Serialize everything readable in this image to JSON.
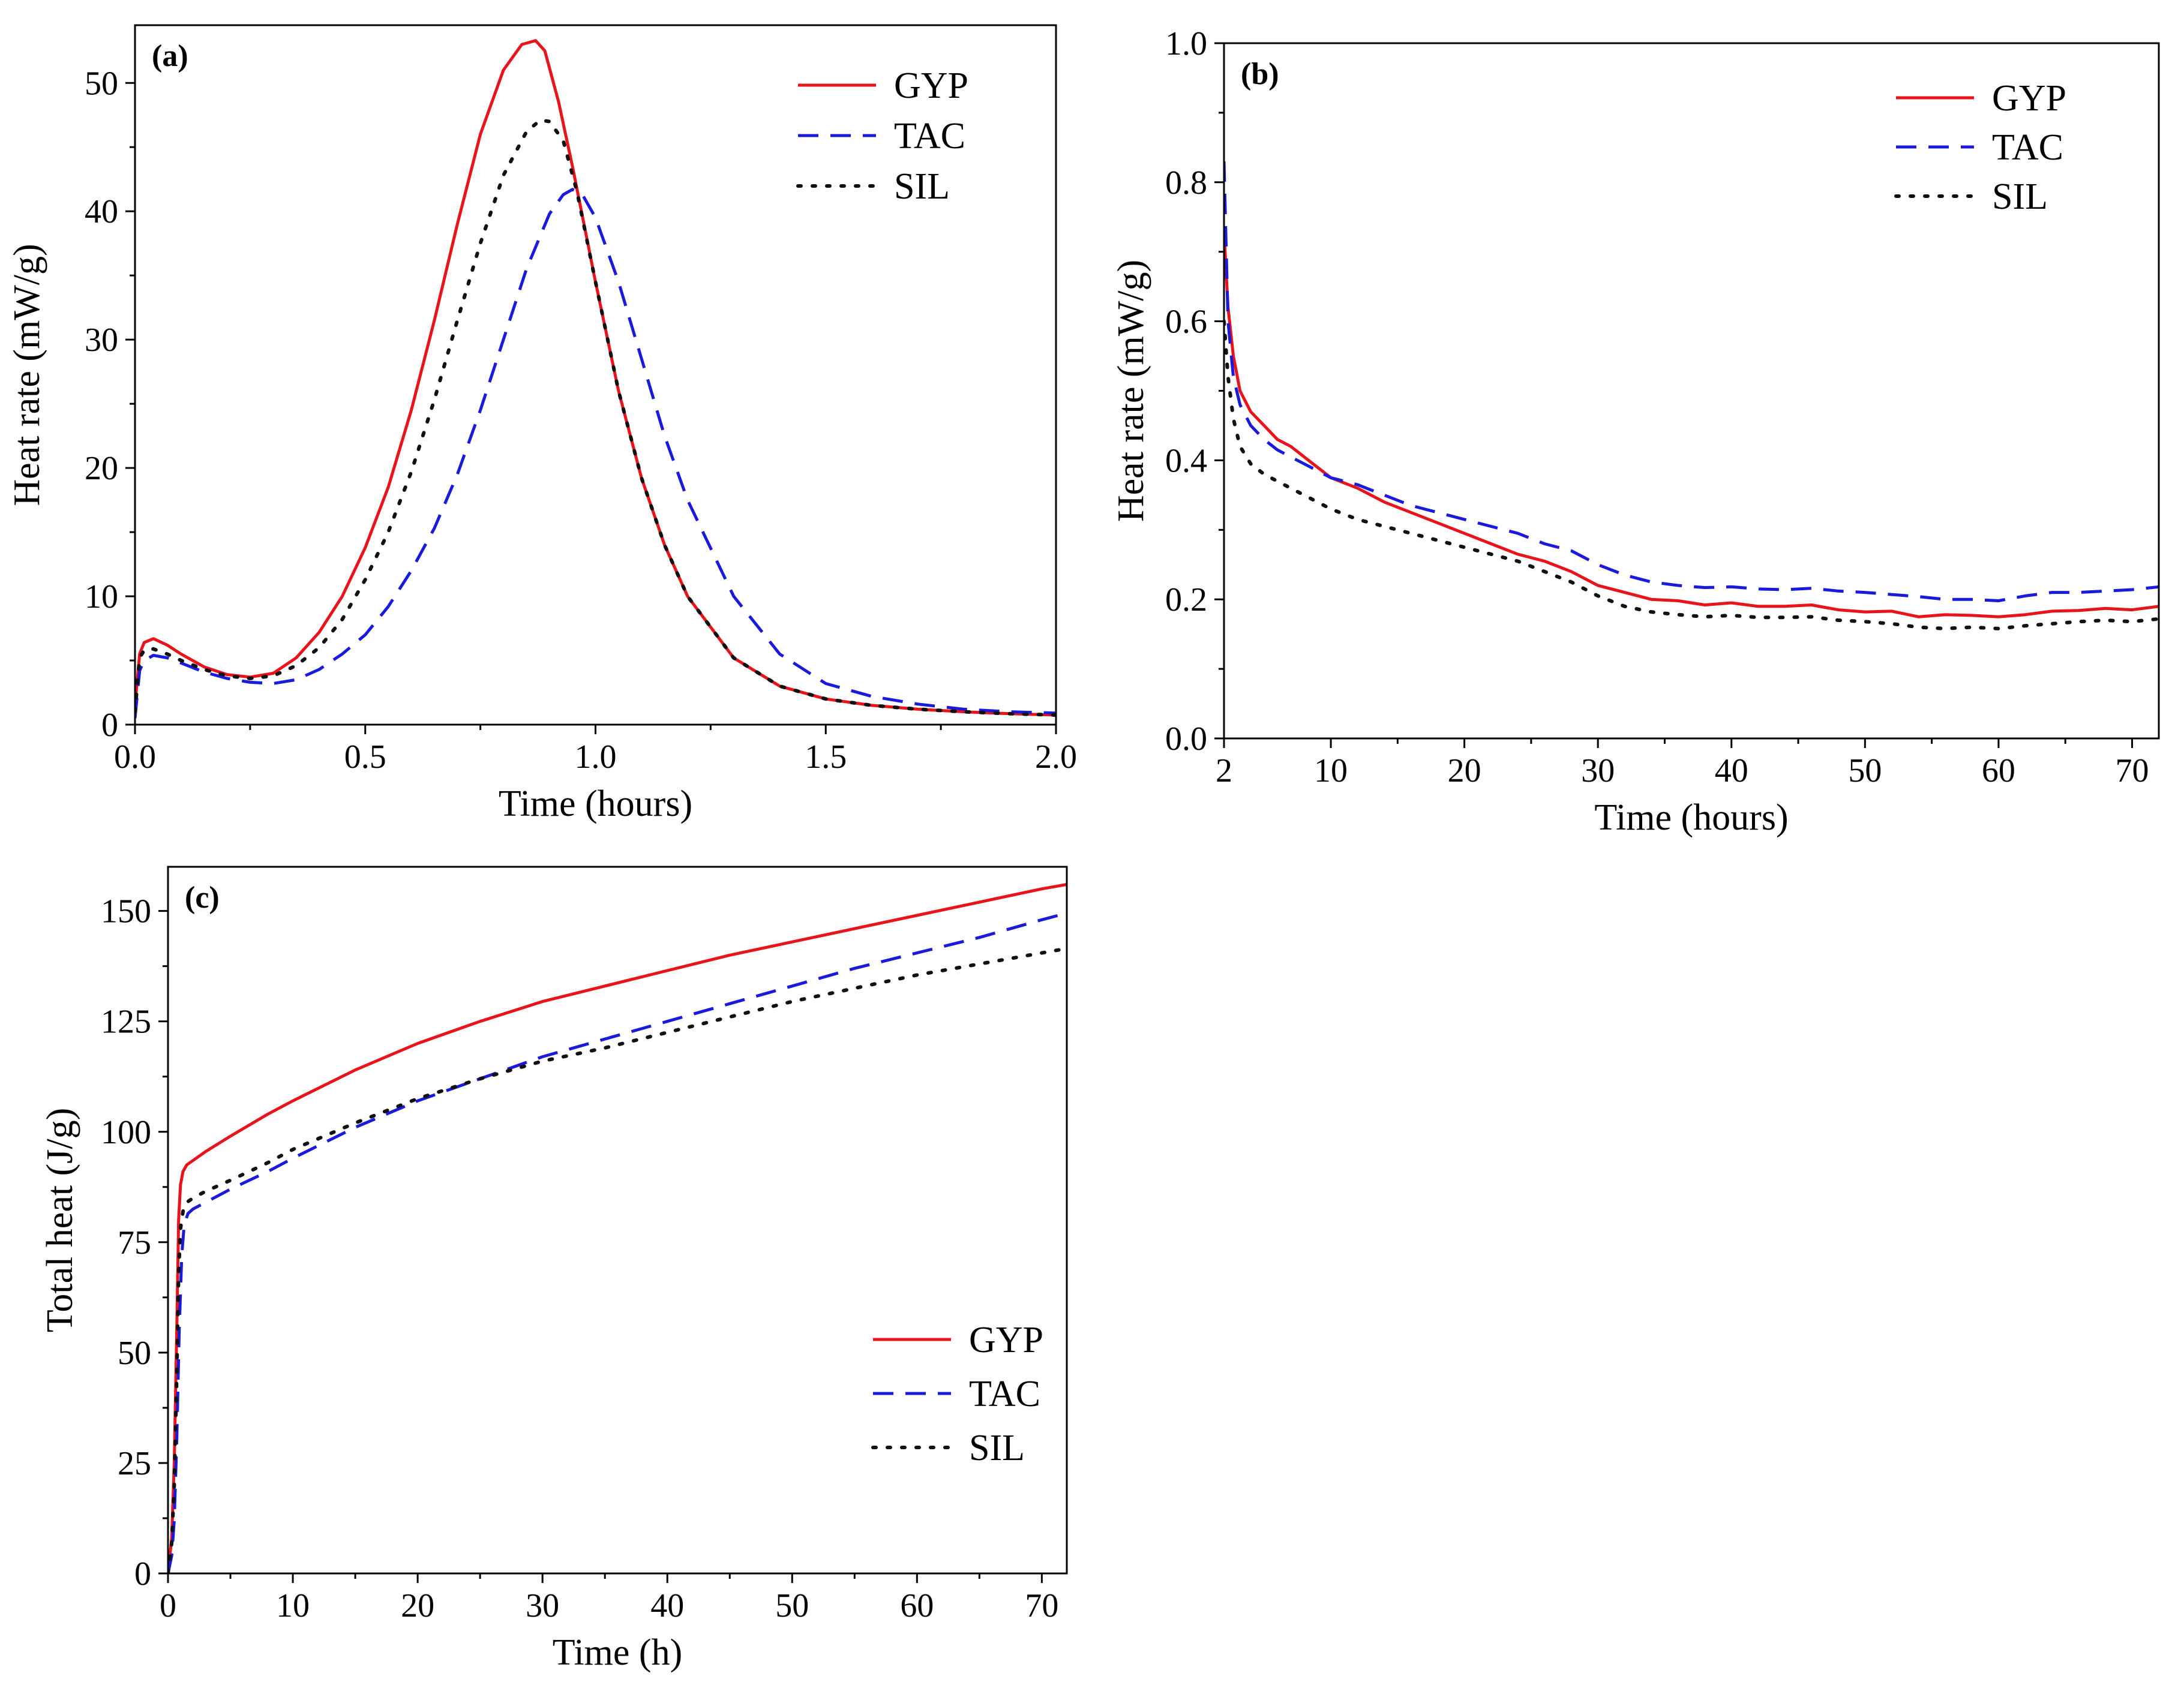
{
  "colors": {
    "GYP": "#e8141b",
    "TAC": "#1a1adb",
    "SIL": "#111111"
  },
  "chart_data": [
    {
      "id": "a",
      "panel_label": "(a)",
      "type": "line",
      "xlabel": "Time (hours)",
      "ylabel": "Heat rate (mW/g)",
      "xlim": [
        0,
        2.0
      ],
      "ylim": [
        0,
        54.5
      ],
      "xticks": [
        0.0,
        0.5,
        1.0,
        1.5,
        2.0
      ],
      "xtick_labels": [
        "0.0",
        "0.5",
        "1.0",
        "1.5",
        "2.0"
      ],
      "yticks": [
        0,
        10,
        20,
        30,
        40,
        50
      ],
      "ytick_labels": [
        "0",
        "10",
        "20",
        "30",
        "40",
        "50"
      ],
      "legend_position": "top-right",
      "series": [
        {
          "name": "GYP",
          "style": "solid",
          "x": [
            0,
            0.01,
            0.02,
            0.04,
            0.07,
            0.1,
            0.15,
            0.2,
            0.25,
            0.3,
            0.35,
            0.4,
            0.45,
            0.5,
            0.55,
            0.6,
            0.65,
            0.7,
            0.75,
            0.8,
            0.84,
            0.87,
            0.89,
            0.92,
            0.95,
            1.0,
            1.05,
            1.1,
            1.15,
            1.2,
            1.3,
            1.4,
            1.5,
            1.6,
            1.7,
            1.8,
            1.9,
            2.0
          ],
          "y": [
            1.5,
            5.5,
            6.4,
            6.7,
            6.2,
            5.5,
            4.5,
            3.9,
            3.7,
            4.0,
            5.2,
            7.2,
            10.0,
            13.8,
            18.5,
            24.5,
            31.5,
            39.0,
            46.0,
            51.0,
            53.0,
            53.3,
            52.5,
            48.5,
            43.5,
            34.5,
            26.0,
            19.2,
            14.0,
            10.0,
            5.2,
            3.0,
            2.0,
            1.5,
            1.2,
            1.0,
            0.85,
            0.75
          ]
        },
        {
          "name": "TAC",
          "style": "dashed",
          "x": [
            0,
            0.01,
            0.02,
            0.04,
            0.07,
            0.1,
            0.15,
            0.2,
            0.25,
            0.3,
            0.35,
            0.4,
            0.45,
            0.5,
            0.55,
            0.6,
            0.65,
            0.7,
            0.75,
            0.8,
            0.85,
            0.9,
            0.93,
            0.95,
            0.97,
            1.0,
            1.05,
            1.1,
            1.15,
            1.2,
            1.3,
            1.4,
            1.5,
            1.6,
            1.7,
            1.8,
            1.9,
            2.0
          ],
          "y": [
            0.5,
            4.2,
            5.0,
            5.4,
            5.2,
            4.8,
            4.1,
            3.6,
            3.3,
            3.2,
            3.5,
            4.3,
            5.5,
            7.0,
            9.2,
            12.0,
            15.3,
            19.5,
            24.5,
            30.0,
            35.5,
            39.8,
            41.3,
            41.7,
            41.4,
            39.5,
            34.5,
            28.5,
            22.5,
            17.5,
            10.0,
            5.5,
            3.2,
            2.2,
            1.6,
            1.2,
            1.0,
            0.9
          ]
        },
        {
          "name": "SIL",
          "style": "dotted",
          "x": [
            0,
            0.01,
            0.02,
            0.04,
            0.07,
            0.1,
            0.15,
            0.2,
            0.25,
            0.3,
            0.35,
            0.4,
            0.45,
            0.5,
            0.55,
            0.6,
            0.65,
            0.7,
            0.75,
            0.8,
            0.85,
            0.88,
            0.9,
            0.93,
            0.96,
            1.0,
            1.05,
            1.1,
            1.15,
            1.2,
            1.3,
            1.4,
            1.5,
            1.6,
            1.7,
            1.8,
            1.9,
            2.0
          ],
          "y": [
            1.0,
            5.2,
            5.8,
            5.9,
            5.5,
            5.0,
            4.3,
            3.8,
            3.6,
            3.8,
            4.6,
            6.0,
            8.2,
            11.3,
            15.0,
            19.7,
            25.3,
            31.5,
            37.5,
            42.8,
            46.2,
            47.1,
            47.0,
            45.5,
            41.5,
            34.5,
            26.0,
            19.2,
            14.0,
            10.0,
            5.2,
            3.0,
            2.0,
            1.5,
            1.2,
            1.0,
            0.85,
            0.75
          ]
        }
      ]
    },
    {
      "id": "b",
      "panel_label": "(b)",
      "type": "line",
      "xlabel": "Time (hours)",
      "ylabel": "Heat rate (mW/g)",
      "xlim": [
        2,
        72
      ],
      "ylim": [
        0,
        1.0
      ],
      "xticks": [
        2,
        10,
        20,
        30,
        40,
        50,
        60,
        70
      ],
      "xtick_labels": [
        "2",
        "10",
        "20",
        "30",
        "40",
        "50",
        "60",
        "70"
      ],
      "yticks": [
        0.0,
        0.2,
        0.4,
        0.6,
        0.8,
        1.0
      ],
      "ytick_labels": [
        "0.0",
        "0.2",
        "0.4",
        "0.6",
        "0.8",
        "1.0"
      ],
      "legend_position": "top-right",
      "series": [
        {
          "name": "GYP",
          "style": "solid",
          "x": [
            2,
            2.3,
            2.7,
            3.2,
            4,
            5,
            6,
            7,
            8,
            9,
            10,
            12,
            14,
            16,
            18,
            20,
            22,
            24,
            26,
            28,
            30,
            32,
            34,
            36,
            38,
            40,
            42,
            44,
            46,
            48,
            50,
            52,
            54,
            56,
            58,
            60,
            62,
            64,
            66,
            68,
            70,
            72
          ],
          "y": [
            0.73,
            0.62,
            0.55,
            0.5,
            0.47,
            0.45,
            0.43,
            0.42,
            0.405,
            0.39,
            0.375,
            0.36,
            0.34,
            0.325,
            0.31,
            0.295,
            0.28,
            0.265,
            0.255,
            0.24,
            0.22,
            0.21,
            0.2,
            0.198,
            0.192,
            0.195,
            0.19,
            0.19,
            0.192,
            0.185,
            0.182,
            0.183,
            0.175,
            0.178,
            0.177,
            0.175,
            0.178,
            0.183,
            0.184,
            0.187,
            0.185,
            0.19
          ]
        },
        {
          "name": "TAC",
          "style": "dashed",
          "x": [
            2,
            2.3,
            2.7,
            3.2,
            4,
            5,
            6,
            7,
            8,
            9,
            10,
            12,
            14,
            16,
            18,
            20,
            22,
            24,
            26,
            28,
            30,
            32,
            34,
            36,
            38,
            40,
            42,
            44,
            46,
            48,
            50,
            52,
            54,
            56,
            58,
            60,
            62,
            64,
            66,
            68,
            70,
            72
          ],
          "y": [
            0.83,
            0.6,
            0.52,
            0.48,
            0.45,
            0.43,
            0.415,
            0.405,
            0.395,
            0.385,
            0.375,
            0.365,
            0.35,
            0.335,
            0.325,
            0.315,
            0.305,
            0.295,
            0.28,
            0.27,
            0.25,
            0.235,
            0.225,
            0.22,
            0.217,
            0.218,
            0.215,
            0.214,
            0.216,
            0.212,
            0.21,
            0.207,
            0.204,
            0.2,
            0.2,
            0.198,
            0.205,
            0.21,
            0.21,
            0.212,
            0.214,
            0.218
          ]
        },
        {
          "name": "SIL",
          "style": "dotted",
          "x": [
            2,
            2.3,
            2.7,
            3.2,
            4,
            5,
            6,
            7,
            8,
            9,
            10,
            12,
            14,
            16,
            18,
            20,
            22,
            24,
            26,
            28,
            30,
            32,
            34,
            36,
            38,
            40,
            42,
            44,
            46,
            48,
            50,
            52,
            54,
            56,
            58,
            60,
            62,
            64,
            66,
            68,
            70,
            72
          ],
          "y": [
            0.6,
            0.52,
            0.46,
            0.42,
            0.395,
            0.38,
            0.37,
            0.36,
            0.35,
            0.34,
            0.33,
            0.315,
            0.305,
            0.295,
            0.285,
            0.275,
            0.265,
            0.255,
            0.24,
            0.225,
            0.205,
            0.19,
            0.182,
            0.178,
            0.175,
            0.177,
            0.174,
            0.174,
            0.175,
            0.17,
            0.168,
            0.165,
            0.16,
            0.158,
            0.16,
            0.158,
            0.162,
            0.165,
            0.168,
            0.17,
            0.168,
            0.172
          ]
        }
      ]
    },
    {
      "id": "c",
      "panel_label": "(c)",
      "type": "line",
      "xlabel": "Time (h)",
      "ylabel": "Total heat (J/g)",
      "xlim": [
        0,
        72
      ],
      "ylim": [
        0,
        160
      ],
      "xticks": [
        0,
        10,
        20,
        30,
        40,
        50,
        60,
        70
      ],
      "xtick_labels": [
        "0",
        "10",
        "20",
        "30",
        "40",
        "50",
        "60",
        "70"
      ],
      "yticks": [
        0,
        25,
        50,
        75,
        100,
        125,
        150
      ],
      "ytick_labels": [
        "0",
        "25",
        "50",
        "75",
        "100",
        "125",
        "150"
      ],
      "legend_position": "lower-right",
      "series": [
        {
          "name": "GYP",
          "style": "solid",
          "x": [
            0,
            0.3,
            0.5,
            0.7,
            0.85,
            1.0,
            1.2,
            1.5,
            2,
            3,
            5,
            8,
            10,
            15,
            20,
            25,
            30,
            35,
            40,
            45,
            50,
            55,
            60,
            65,
            70,
            72
          ],
          "y": [
            0,
            8,
            25,
            55,
            80,
            88,
            91,
            92.5,
            93.5,
            95.5,
            99,
            104,
            107,
            114,
            120,
            125,
            129.5,
            133,
            136.5,
            140,
            143,
            146,
            149,
            152,
            155,
            156
          ]
        },
        {
          "name": "TAC",
          "style": "dashed",
          "x": [
            0,
            0.3,
            0.5,
            0.7,
            0.9,
            1.1,
            1.3,
            1.6,
            2,
            3,
            5,
            8,
            10,
            15,
            20,
            25,
            30,
            35,
            40,
            45,
            50,
            55,
            60,
            65,
            70,
            72
          ],
          "y": [
            0,
            4,
            12,
            30,
            55,
            72,
            79,
            81.5,
            82.5,
            84,
            87,
            91,
            94,
            101,
            107,
            112,
            117,
            121,
            125,
            129,
            133,
            137,
            140.5,
            144,
            148,
            149.5
          ]
        },
        {
          "name": "SIL",
          "style": "dotted",
          "x": [
            0,
            0.3,
            0.5,
            0.7,
            0.85,
            1.0,
            1.2,
            1.5,
            2,
            3,
            5,
            8,
            10,
            15,
            20,
            25,
            30,
            35,
            40,
            45,
            50,
            55,
            60,
            65,
            70,
            72
          ],
          "y": [
            0,
            7,
            20,
            45,
            68,
            78,
            82,
            84,
            85,
            86.5,
            89,
            93,
            96,
            102,
            107.5,
            112,
            116,
            119,
            122.5,
            126,
            129.5,
            132.5,
            135.5,
            138,
            140.5,
            141.5
          ]
        }
      ]
    }
  ]
}
